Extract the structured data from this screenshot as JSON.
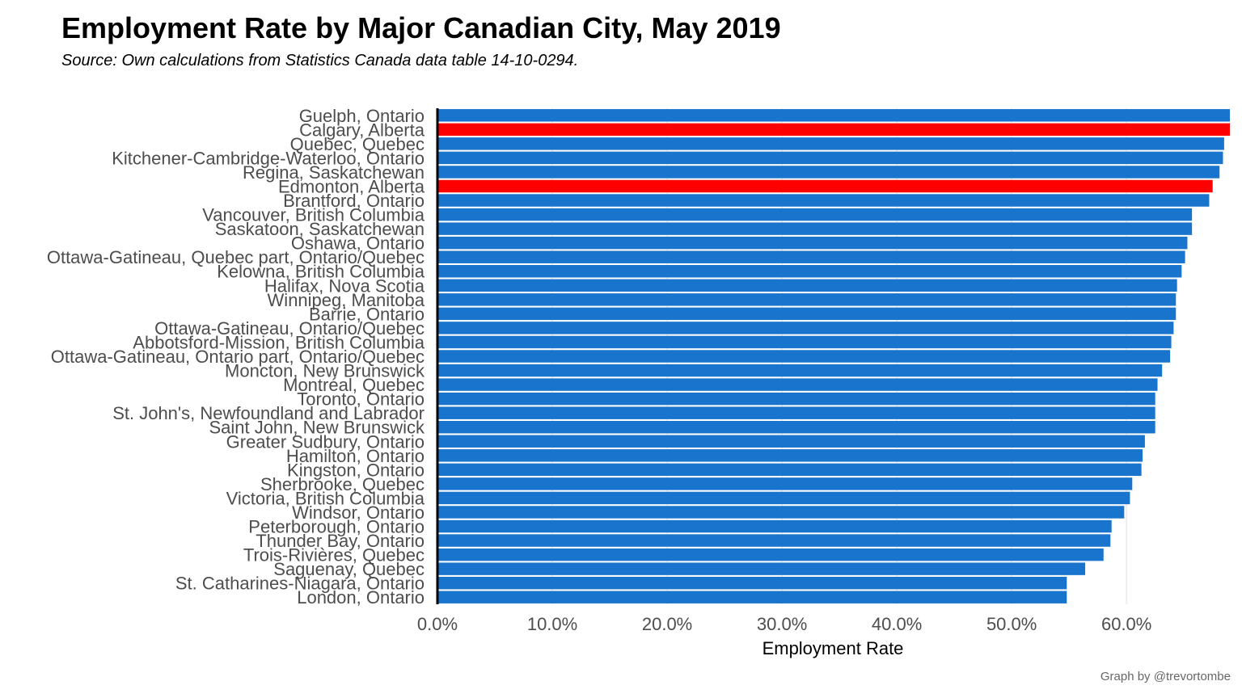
{
  "chart_data": {
    "type": "bar",
    "orientation": "horizontal",
    "title": "Employment Rate by Major Canadian City, May 2019",
    "subtitle": "Source: Own calculations from Statistics Canada data table 14-10-0294.",
    "xlabel": "Employment Rate",
    "ylabel": "",
    "xlim": [
      0,
      69
    ],
    "x_ticks": [
      0,
      10,
      20,
      30,
      40,
      50,
      60
    ],
    "x_tick_labels": [
      "0.0%",
      "10.0%",
      "20.0%",
      "30.0%",
      "40.0%",
      "50.0%",
      "60.0%"
    ],
    "grid": "vertical major lines",
    "legend": "none",
    "default_color": "#1874CD",
    "highlight_color": "#FF0000",
    "categories": [
      "Guelph, Ontario",
      "Calgary, Alberta",
      "Quebec, Quebec",
      "Kitchener-Cambridge-Waterloo, Ontario",
      "Regina, Saskatchewan",
      "Edmonton, Alberta",
      "Brantford, Ontario",
      "Vancouver, British Columbia",
      "Saskatoon, Saskatchewan",
      "Oshawa, Ontario",
      "Ottawa-Gatineau, Quebec part, Ontario/Quebec",
      "Kelowna, British Columbia",
      "Halifax, Nova Scotia",
      "Winnipeg, Manitoba",
      "Barrie, Ontario",
      "Ottawa-Gatineau, Ontario/Quebec",
      "Abbotsford-Mission, British Columbia",
      "Ottawa-Gatineau, Ontario part, Ontario/Quebec",
      "Moncton, New Brunswick",
      "Montréal, Quebec",
      "Toronto, Ontario",
      "St. John's, Newfoundland and Labrador",
      "Saint John, New Brunswick",
      "Greater Sudbury, Ontario",
      "Hamilton, Ontario",
      "Kingston, Ontario",
      "Sherbrooke, Quebec",
      "Victoria, British Columbia",
      "Windsor, Ontario",
      "Peterborough, Ontario",
      "Thunder Bay, Ontario",
      "Trois-Rivières, Quebec",
      "Saguenay, Quebec",
      "St. Catharines-Niagara, Ontario",
      "London, Ontario"
    ],
    "values": [
      69.0,
      69.0,
      68.5,
      68.4,
      68.1,
      67.5,
      67.2,
      65.7,
      65.7,
      65.3,
      65.1,
      64.8,
      64.4,
      64.3,
      64.3,
      64.1,
      63.9,
      63.8,
      63.1,
      62.7,
      62.5,
      62.5,
      62.5,
      61.6,
      61.4,
      61.3,
      60.5,
      60.3,
      59.8,
      58.7,
      58.6,
      58.0,
      56.4,
      54.8,
      54.8
    ],
    "highlighted": [
      "Calgary, Alberta",
      "Edmonton, Alberta"
    ]
  },
  "credit": "Graph by @trevortombe"
}
